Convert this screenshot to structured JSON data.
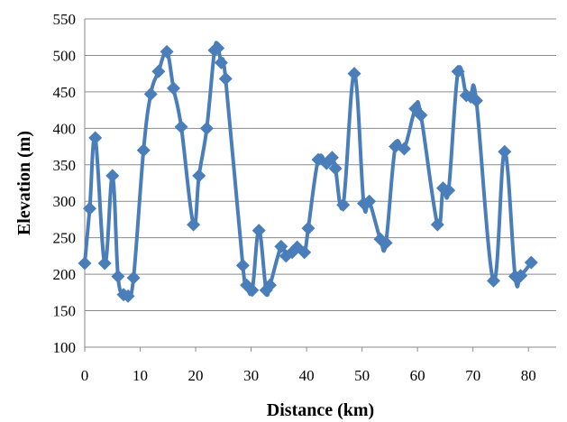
{
  "chart_data": {
    "type": "line",
    "title": "",
    "xlabel": "Distance (km)",
    "ylabel": "Elevation (m)",
    "xlim": [
      0,
      85
    ],
    "ylim": [
      100,
      550
    ],
    "x_ticks": [
      0,
      10,
      20,
      30,
      40,
      50,
      60,
      70,
      80
    ],
    "y_ticks": [
      100,
      150,
      200,
      250,
      300,
      350,
      400,
      450,
      500,
      550
    ],
    "grid": "horizontal",
    "legend": "none",
    "colors": {
      "series": "#4a7ebb",
      "grid": "#8a8a8a",
      "axis": "#8a8a8a"
    },
    "series": [
      {
        "marker": "diamond",
        "smooth": true,
        "x": [
          0,
          0.9,
          1.9,
          3.6,
          5.0,
          6.0,
          7.0,
          7.8,
          8.8,
          10.6,
          11.9,
          13.3,
          14.8,
          16.0,
          17.4,
          19.6,
          20.6,
          22.0,
          23.4,
          24.0,
          24.6,
          25.4,
          28.5,
          29.2,
          30.2,
          31.4,
          32.7,
          33.4,
          35.4,
          36.3,
          37.4,
          38.3,
          39.6,
          40.3,
          42.1,
          43.6,
          44.6,
          45.2,
          46.6,
          48.6,
          50.3,
          51.3,
          53.3,
          54.3,
          56.0,
          57.6,
          59.6,
          60.6,
          63.6,
          64.6,
          65.6,
          67.3,
          68.8,
          69.6,
          70.6,
          73.7,
          75.7,
          77.6,
          78.6,
          80.5
        ],
        "y": [
          215,
          290,
          387,
          215,
          335,
          197,
          172,
          170,
          195,
          370,
          447,
          478,
          505,
          455,
          402,
          268,
          335,
          400,
          507,
          510,
          490,
          468,
          212,
          185,
          178,
          260,
          178,
          185,
          238,
          225,
          230,
          237,
          230,
          263,
          357,
          352,
          360,
          345,
          295,
          475,
          297,
          300,
          248,
          243,
          375,
          372,
          427,
          418,
          268,
          318,
          315,
          478,
          445,
          443,
          438,
          191,
          368,
          197,
          198,
          216
        ]
      }
    ]
  }
}
